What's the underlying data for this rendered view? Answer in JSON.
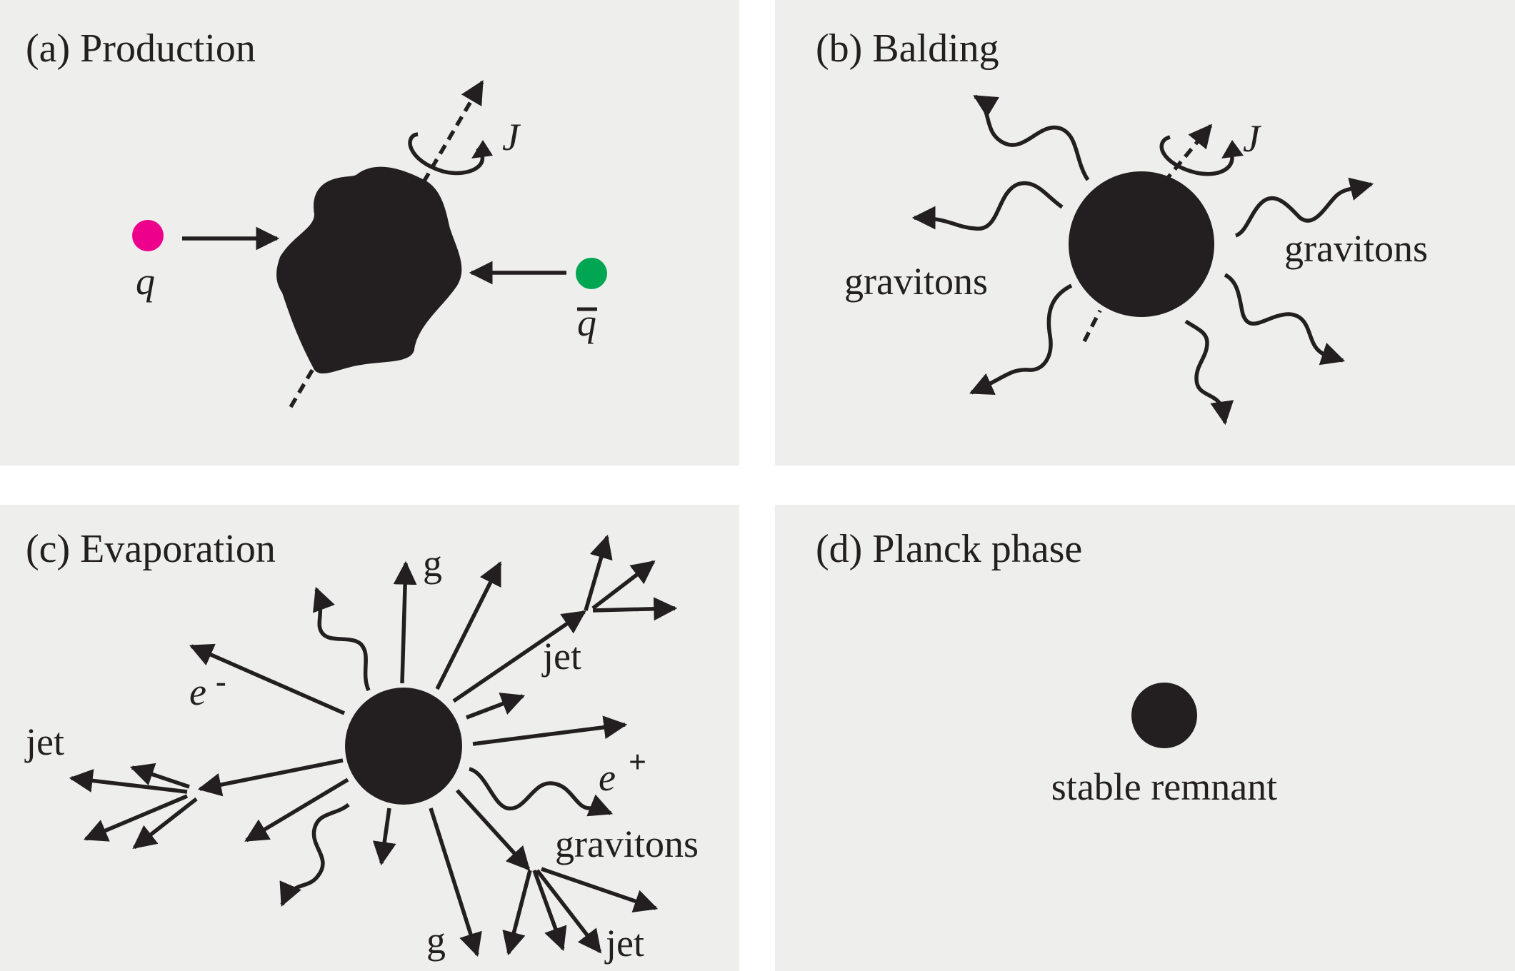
{
  "panels": {
    "a": {
      "title": "(a) Production",
      "quark_label": "q",
      "antiquark_label": "q",
      "angular_momentum_label": "J",
      "quark_color": "#ec008c",
      "antiquark_color": "#00a651"
    },
    "b": {
      "title": "(b) Balding",
      "angular_momentum_label": "J",
      "gravitons_left_label": "gravitons",
      "gravitons_right_label": "gravitons"
    },
    "c": {
      "title": "(c) Evaporation",
      "gluon_top_label": "g",
      "gluon_bottom_label": "g",
      "jet_top_label": "jet",
      "jet_left_label": "jet",
      "jet_bottom_label": "jet",
      "electron_label": "e",
      "electron_charge": "-",
      "positron_label": "e",
      "positron_charge": "+",
      "gravitons_label": "gravitons"
    },
    "d": {
      "title": "(d) Planck phase",
      "remnant_label": "stable remnant"
    }
  },
  "colors": {
    "panel_background": "#eeeeed",
    "ink": "#231f20"
  }
}
